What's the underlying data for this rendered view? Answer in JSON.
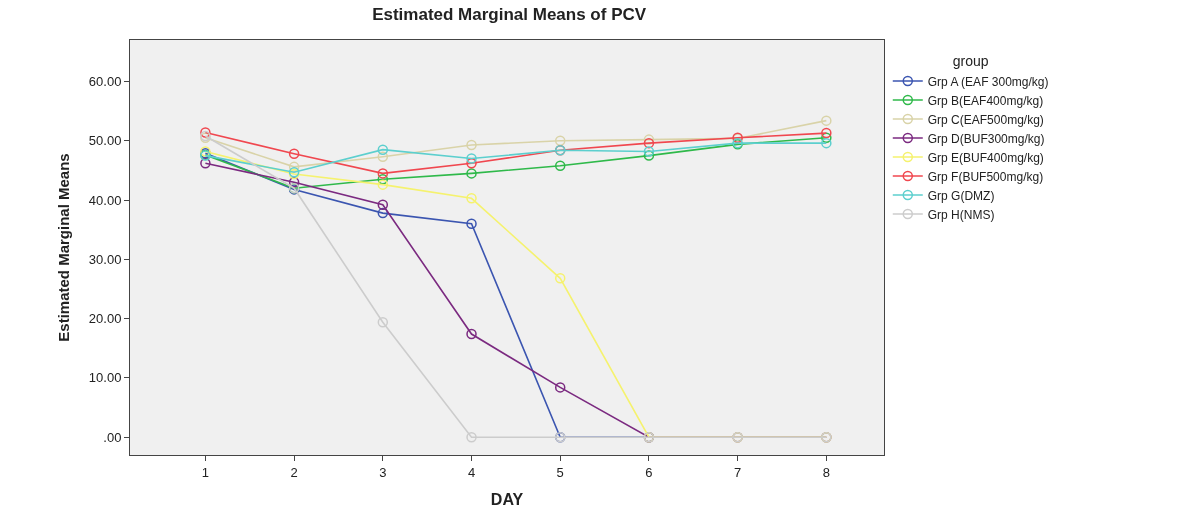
{
  "chart_data": {
    "type": "line",
    "title": "Estimated Marginal Means of PCV",
    "xlabel": "DAY",
    "ylabel": "Estimated Marginal Means",
    "legend_title": "group",
    "x": [
      1,
      2,
      3,
      4,
      5,
      6,
      7,
      8
    ],
    "series": [
      {
        "name": "Grp A (EAF 300mg/kg)",
        "color": "#3b55b0",
        "values": [
          47.9,
          41.8,
          37.8,
          36.0,
          0,
          0,
          null,
          null
        ]
      },
      {
        "name": "Grp B(EAF400mg/kg)",
        "color": "#2fb94a",
        "values": [
          47.6,
          42.0,
          43.5,
          44.5,
          45.8,
          47.5,
          49.4,
          50.5
        ]
      },
      {
        "name": "Grp C(EAF500mg/kg)",
        "color": "#d9d3a8",
        "values": [
          50.5,
          45.6,
          47.3,
          49.3,
          50.0,
          50.2,
          50.4,
          53.4
        ]
      },
      {
        "name": "Grp D(BUF300mg/kg)",
        "color": "#7b2a80",
        "values": [
          46.2,
          43.0,
          39.2,
          17.4,
          8.4,
          0,
          0,
          0
        ]
      },
      {
        "name": "Grp E(BUF400mg/kg)",
        "color": "#f5f26e",
        "values": [
          48.2,
          44.4,
          42.6,
          40.3,
          26.8,
          0,
          0,
          0
        ]
      },
      {
        "name": "Grp F(BUF500mg/kg)",
        "color": "#f0474f",
        "values": [
          51.4,
          47.8,
          44.5,
          46.2,
          48.4,
          49.6,
          50.5,
          51.3
        ]
      },
      {
        "name": "Grp G(DMZ)",
        "color": "#5ccfce",
        "values": [
          47.5,
          44.7,
          48.5,
          47.0,
          48.4,
          48.2,
          49.6,
          49.6
        ]
      },
      {
        "name": "Grp H(NMS)",
        "color": "#cccccc",
        "values": [
          50.8,
          42.0,
          19.4,
          0,
          0,
          0,
          0,
          0
        ]
      }
    ],
    "xlim": [
      0.15,
      8.65
    ],
    "xticks": [
      1,
      2,
      3,
      4,
      5,
      6,
      7,
      8
    ],
    "ylim": [
      -3,
      67
    ],
    "yticks": [
      {
        "value": 0,
        "label": ".00"
      },
      {
        "value": 10,
        "label": "10.00"
      },
      {
        "value": 20,
        "label": "20.00"
      },
      {
        "value": 30,
        "label": "30.00"
      },
      {
        "value": 40,
        "label": "40.00"
      },
      {
        "value": 50,
        "label": "50.00"
      },
      {
        "value": 60,
        "label": "60.00"
      }
    ],
    "marker": "circle",
    "line_style": "solid",
    "grid": false,
    "legend": "right"
  }
}
